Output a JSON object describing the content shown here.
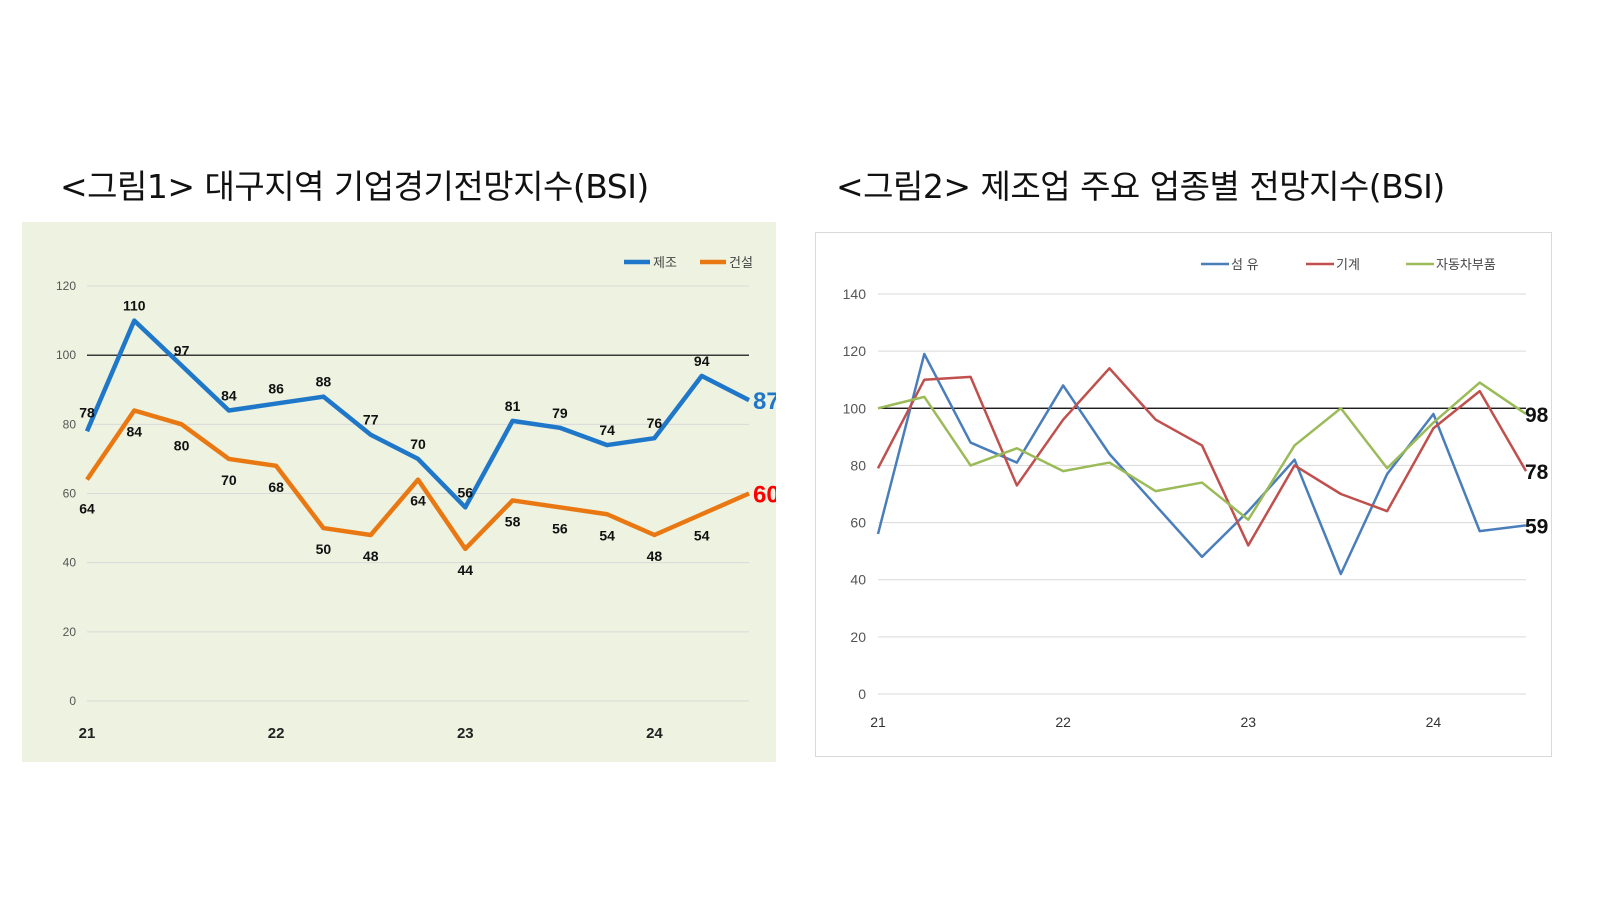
{
  "titles": {
    "chart1": "<그림1> 대구지역 기업경기전망지수(BSI)",
    "chart2": "<그림2> 제조업 주요 업종별 전망지수(BSI)"
  },
  "chart_data": [
    {
      "type": "line",
      "title": "<그림1> 대구지역 기업경기전망지수(BSI)",
      "x_tick_labels": [
        "21",
        "22",
        "23",
        "24"
      ],
      "x_tick_positions": [
        0,
        4,
        8,
        12
      ],
      "ylim": [
        0,
        120
      ],
      "yticks": [
        0,
        20,
        40,
        60,
        80,
        100,
        120
      ],
      "reference_line": 100,
      "grid": true,
      "legend": "top-right",
      "series": [
        {
          "name": "제조",
          "color": "#1f77c9",
          "values": [
            78,
            110,
            97,
            84,
            86,
            88,
            77,
            70,
            56,
            81,
            79,
            74,
            76,
            94,
            87
          ],
          "end_label": "87",
          "end_label_color": "#1f77c9"
        },
        {
          "name": "건설",
          "color": "#e97813",
          "values": [
            64,
            84,
            80,
            70,
            68,
            50,
            48,
            64,
            44,
            58,
            56,
            54,
            48,
            54,
            60
          ],
          "end_label": "60",
          "end_label_color": "#ff0000"
        }
      ]
    },
    {
      "type": "line",
      "title": "<그림2> 제조업 주요 업종별 전망지수(BSI)",
      "x_tick_labels": [
        "21",
        "22",
        "23",
        "24"
      ],
      "x_tick_positions": [
        0,
        4,
        8,
        12
      ],
      "ylim": [
        0,
        140
      ],
      "yticks": [
        0,
        20,
        40,
        60,
        80,
        100,
        120,
        140
      ],
      "reference_line": 100,
      "grid": true,
      "legend": "top-right",
      "series": [
        {
          "name": "섬 유",
          "color": "#4a7ebb",
          "values": [
            56,
            119,
            88,
            81,
            108,
            84,
            66,
            48,
            64,
            82,
            42,
            77,
            98,
            57,
            59
          ],
          "end_label": "59"
        },
        {
          "name": "기계",
          "color": "#c0504d",
          "values": [
            79,
            110,
            111,
            73,
            96,
            114,
            96,
            87,
            52,
            80,
            70,
            64,
            93,
            106,
            78
          ],
          "end_label": "78"
        },
        {
          "name": "자동차부품",
          "color": "#9bbb59",
          "values": [
            100,
            104,
            80,
            86,
            78,
            81,
            71,
            74,
            61,
            87,
            100,
            79,
            95,
            109,
            98
          ],
          "end_label": "98"
        }
      ]
    }
  ]
}
